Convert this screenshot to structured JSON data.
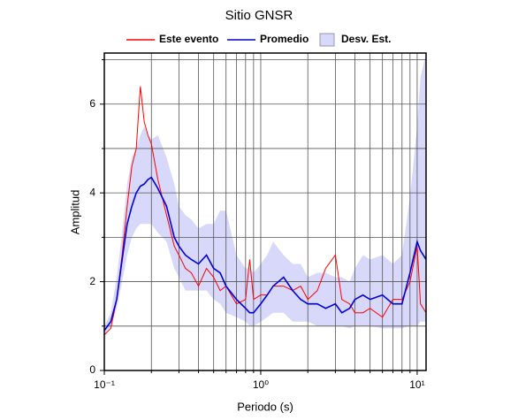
{
  "chart_data": {
    "type": "line",
    "title": "Sitio GNSR",
    "x_label": "Periodo (s)",
    "y_label": "Amplitud",
    "x_scale": "log",
    "x": [
      0.1,
      0.11,
      0.12,
      0.13,
      0.14,
      0.15,
      0.16,
      0.17,
      0.18,
      0.19,
      0.2,
      0.22,
      0.25,
      0.28,
      0.3,
      0.33,
      0.36,
      0.4,
      0.45,
      0.5,
      0.55,
      0.6,
      0.7,
      0.8,
      0.85,
      0.9,
      1.0,
      1.1,
      1.2,
      1.4,
      1.6,
      1.8,
      2.0,
      2.3,
      2.6,
      3.0,
      3.3,
      3.7,
      4.0,
      4.5,
      5,
      6,
      7,
      8,
      9,
      10,
      10.5,
      11.4
    ],
    "series": [
      {
        "name": "Este evento",
        "color": "#ff0000",
        "values": [
          0.8,
          0.95,
          1.6,
          2.6,
          3.7,
          4.6,
          5.0,
          6.4,
          5.6,
          5.3,
          5.1,
          4.3,
          3.5,
          2.8,
          2.6,
          2.3,
          2.2,
          1.9,
          2.3,
          2.1,
          1.8,
          1.9,
          1.5,
          1.6,
          2.5,
          1.6,
          1.7,
          1.7,
          1.9,
          1.9,
          1.8,
          1.9,
          1.6,
          1.8,
          2.3,
          2.6,
          1.6,
          1.5,
          1.3,
          1.3,
          1.4,
          1.2,
          1.6,
          1.6,
          2.0,
          2.8,
          1.5,
          1.3
        ]
      },
      {
        "name": "Promedio",
        "color": "#0000dd",
        "values": [
          0.9,
          1.1,
          1.6,
          2.5,
          3.3,
          3.7,
          4.0,
          4.15,
          4.2,
          4.3,
          4.35,
          4.1,
          3.7,
          3.0,
          2.8,
          2.6,
          2.5,
          2.4,
          2.6,
          2.3,
          2.2,
          1.9,
          1.6,
          1.4,
          1.3,
          1.3,
          1.5,
          1.7,
          1.9,
          2.1,
          1.8,
          1.6,
          1.5,
          1.5,
          1.4,
          1.5,
          1.3,
          1.4,
          1.6,
          1.7,
          1.6,
          1.7,
          1.5,
          1.5,
          2.2,
          2.9,
          2.7,
          2.5
        ]
      },
      {
        "name": "Desv. Est.",
        "color": "#d8d8fa",
        "type": "band",
        "lower": [
          0.8,
          1.0,
          1.4,
          2.0,
          2.6,
          3.0,
          3.2,
          3.3,
          3.3,
          3.3,
          3.3,
          3.1,
          2.9,
          2.3,
          2.1,
          1.8,
          1.8,
          1.8,
          1.8,
          1.6,
          1.5,
          1.3,
          1.2,
          1.1,
          1.0,
          1.0,
          1.1,
          1.2,
          1.3,
          1.3,
          1.1,
          1.1,
          1.1,
          1.0,
          1.0,
          1.0,
          1.0,
          0.95,
          1.0,
          1.0,
          1.0,
          0.95,
          0.95,
          0.95,
          1.0,
          1.0,
          1.1,
          1.1
        ],
        "upper": [
          1.0,
          1.3,
          2.1,
          3.1,
          4.2,
          4.8,
          5.0,
          5.3,
          5.5,
          5.3,
          5.2,
          5.3,
          4.8,
          4.2,
          3.7,
          3.5,
          3.4,
          3.2,
          3.3,
          3.3,
          3.6,
          3.6,
          2.6,
          2.3,
          2.3,
          2.2,
          2.4,
          2.6,
          2.9,
          2.6,
          2.4,
          2.4,
          2.1,
          2.2,
          2.2,
          2.1,
          2.1,
          2.0,
          2.3,
          2.6,
          2.5,
          2.6,
          2.4,
          2.6,
          3.9,
          5.5,
          6.6,
          7.15
        ]
      }
    ],
    "xlim": [
      0.1,
      11.4
    ],
    "ylim": [
      0,
      7.15
    ],
    "xticks": [
      {
        "value": 0.1,
        "label": "10⁻¹"
      },
      {
        "value": 1,
        "label": "10⁰"
      },
      {
        "value": 10,
        "label": "10¹"
      }
    ],
    "x_minor_ticks": [
      0.2,
      0.3,
      0.4,
      0.5,
      0.6,
      0.7,
      0.8,
      0.9,
      2,
      3,
      4,
      5,
      6,
      7,
      8,
      9
    ],
    "yticks": [
      0,
      2,
      4,
      6
    ],
    "y_minor_ticks": [
      1,
      3,
      5,
      7
    ],
    "grid": true
  }
}
